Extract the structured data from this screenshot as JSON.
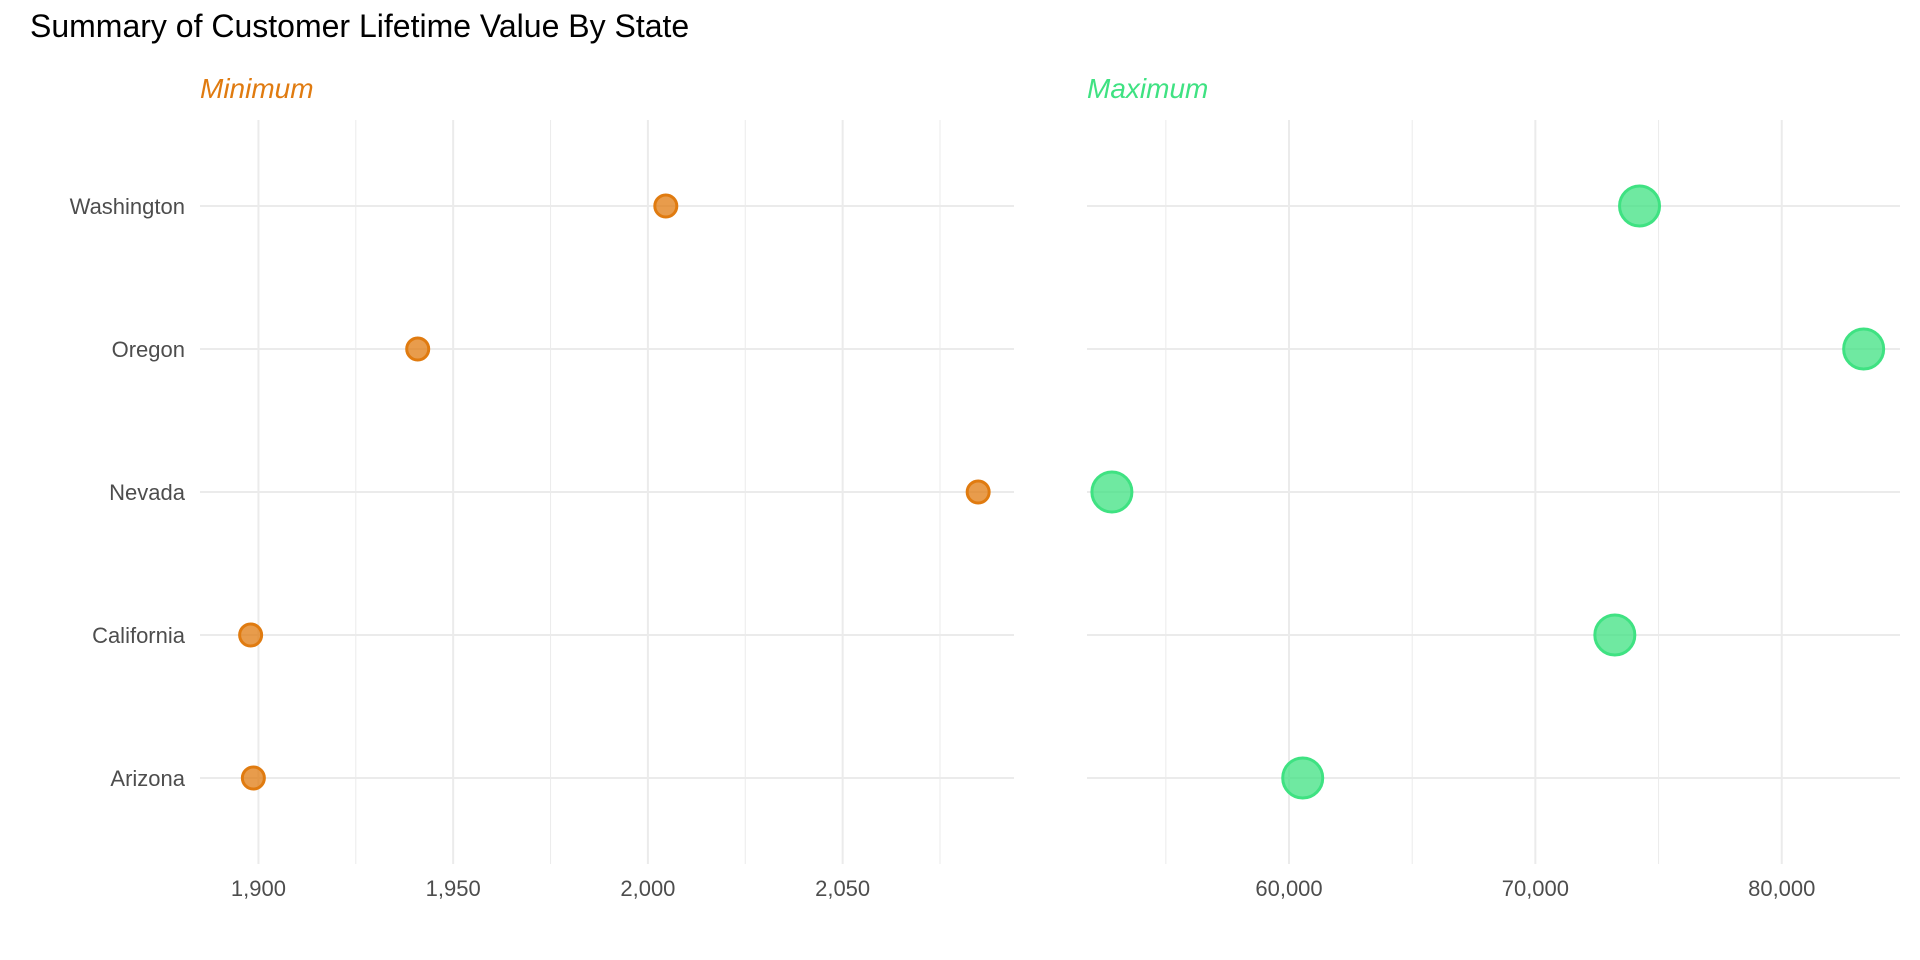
{
  "title": "Summary of Customer Lifetime Value By State",
  "colors": {
    "minimum": "#E07B10",
    "maximum": "#3FE282",
    "grid": "#ebebeb",
    "tick_text": "#4d4d4d"
  },
  "chart_data": [
    {
      "type": "scatter",
      "panel_title": "Minimum",
      "color_key": "minimum",
      "categories": [
        "Arizona",
        "California",
        "Nevada",
        "Oregon",
        "Washington"
      ],
      "values": [
        1898.7,
        1898.0,
        2084.8,
        1940.9,
        2004.6
      ],
      "xlim": [
        1885,
        2094
      ],
      "x_ticks": [
        1900,
        1950,
        2000,
        2050
      ],
      "x_tick_labels": [
        "1,900",
        "1,950",
        "2,000",
        "2,050"
      ],
      "grid": true
    },
    {
      "type": "scatter",
      "panel_title": "Maximum",
      "color_key": "maximum",
      "categories": [
        "Arizona",
        "California",
        "Nevada",
        "Oregon",
        "Washington"
      ],
      "values": [
        60556,
        73225,
        52811,
        83325,
        74228
      ],
      "xlim": [
        51800,
        84800
      ],
      "x_ticks": [
        60000,
        70000,
        80000
      ],
      "x_tick_labels": [
        "60,000",
        "70,000",
        "80,000"
      ],
      "grid": true
    }
  ]
}
